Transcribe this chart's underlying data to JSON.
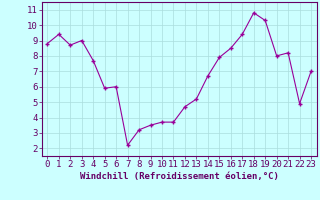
{
  "x": [
    0,
    1,
    2,
    3,
    4,
    5,
    6,
    7,
    8,
    9,
    10,
    11,
    12,
    13,
    14,
    15,
    16,
    17,
    18,
    19,
    20,
    21,
    22,
    23
  ],
  "y": [
    8.8,
    9.4,
    8.7,
    9.0,
    7.7,
    5.9,
    6.0,
    2.2,
    3.2,
    3.5,
    3.7,
    3.7,
    4.7,
    5.2,
    6.7,
    7.9,
    8.5,
    9.4,
    10.8,
    10.3,
    8.0,
    8.2,
    4.9,
    7.0
  ],
  "line_color": "#990099",
  "marker": "+",
  "bg_color": "#ccffff",
  "grid_color": "#aadddd",
  "xlabel": "Windchill (Refroidissement éolien,°C)",
  "ylabel_ticks": [
    2,
    3,
    4,
    5,
    6,
    7,
    8,
    9,
    10,
    11
  ],
  "xlim": [
    -0.5,
    23.5
  ],
  "ylim": [
    1.5,
    11.5
  ],
  "xtick_labels": [
    "0",
    "1",
    "2",
    "3",
    "4",
    "5",
    "6",
    "7",
    "8",
    "9",
    "10",
    "11",
    "12",
    "13",
    "14",
    "15",
    "16",
    "17",
    "18",
    "19",
    "20",
    "21",
    "22",
    "23"
  ],
  "axis_color": "#660066",
  "tick_color": "#660066",
  "xlabel_fontsize": 6.5,
  "tick_fontsize": 6.5
}
